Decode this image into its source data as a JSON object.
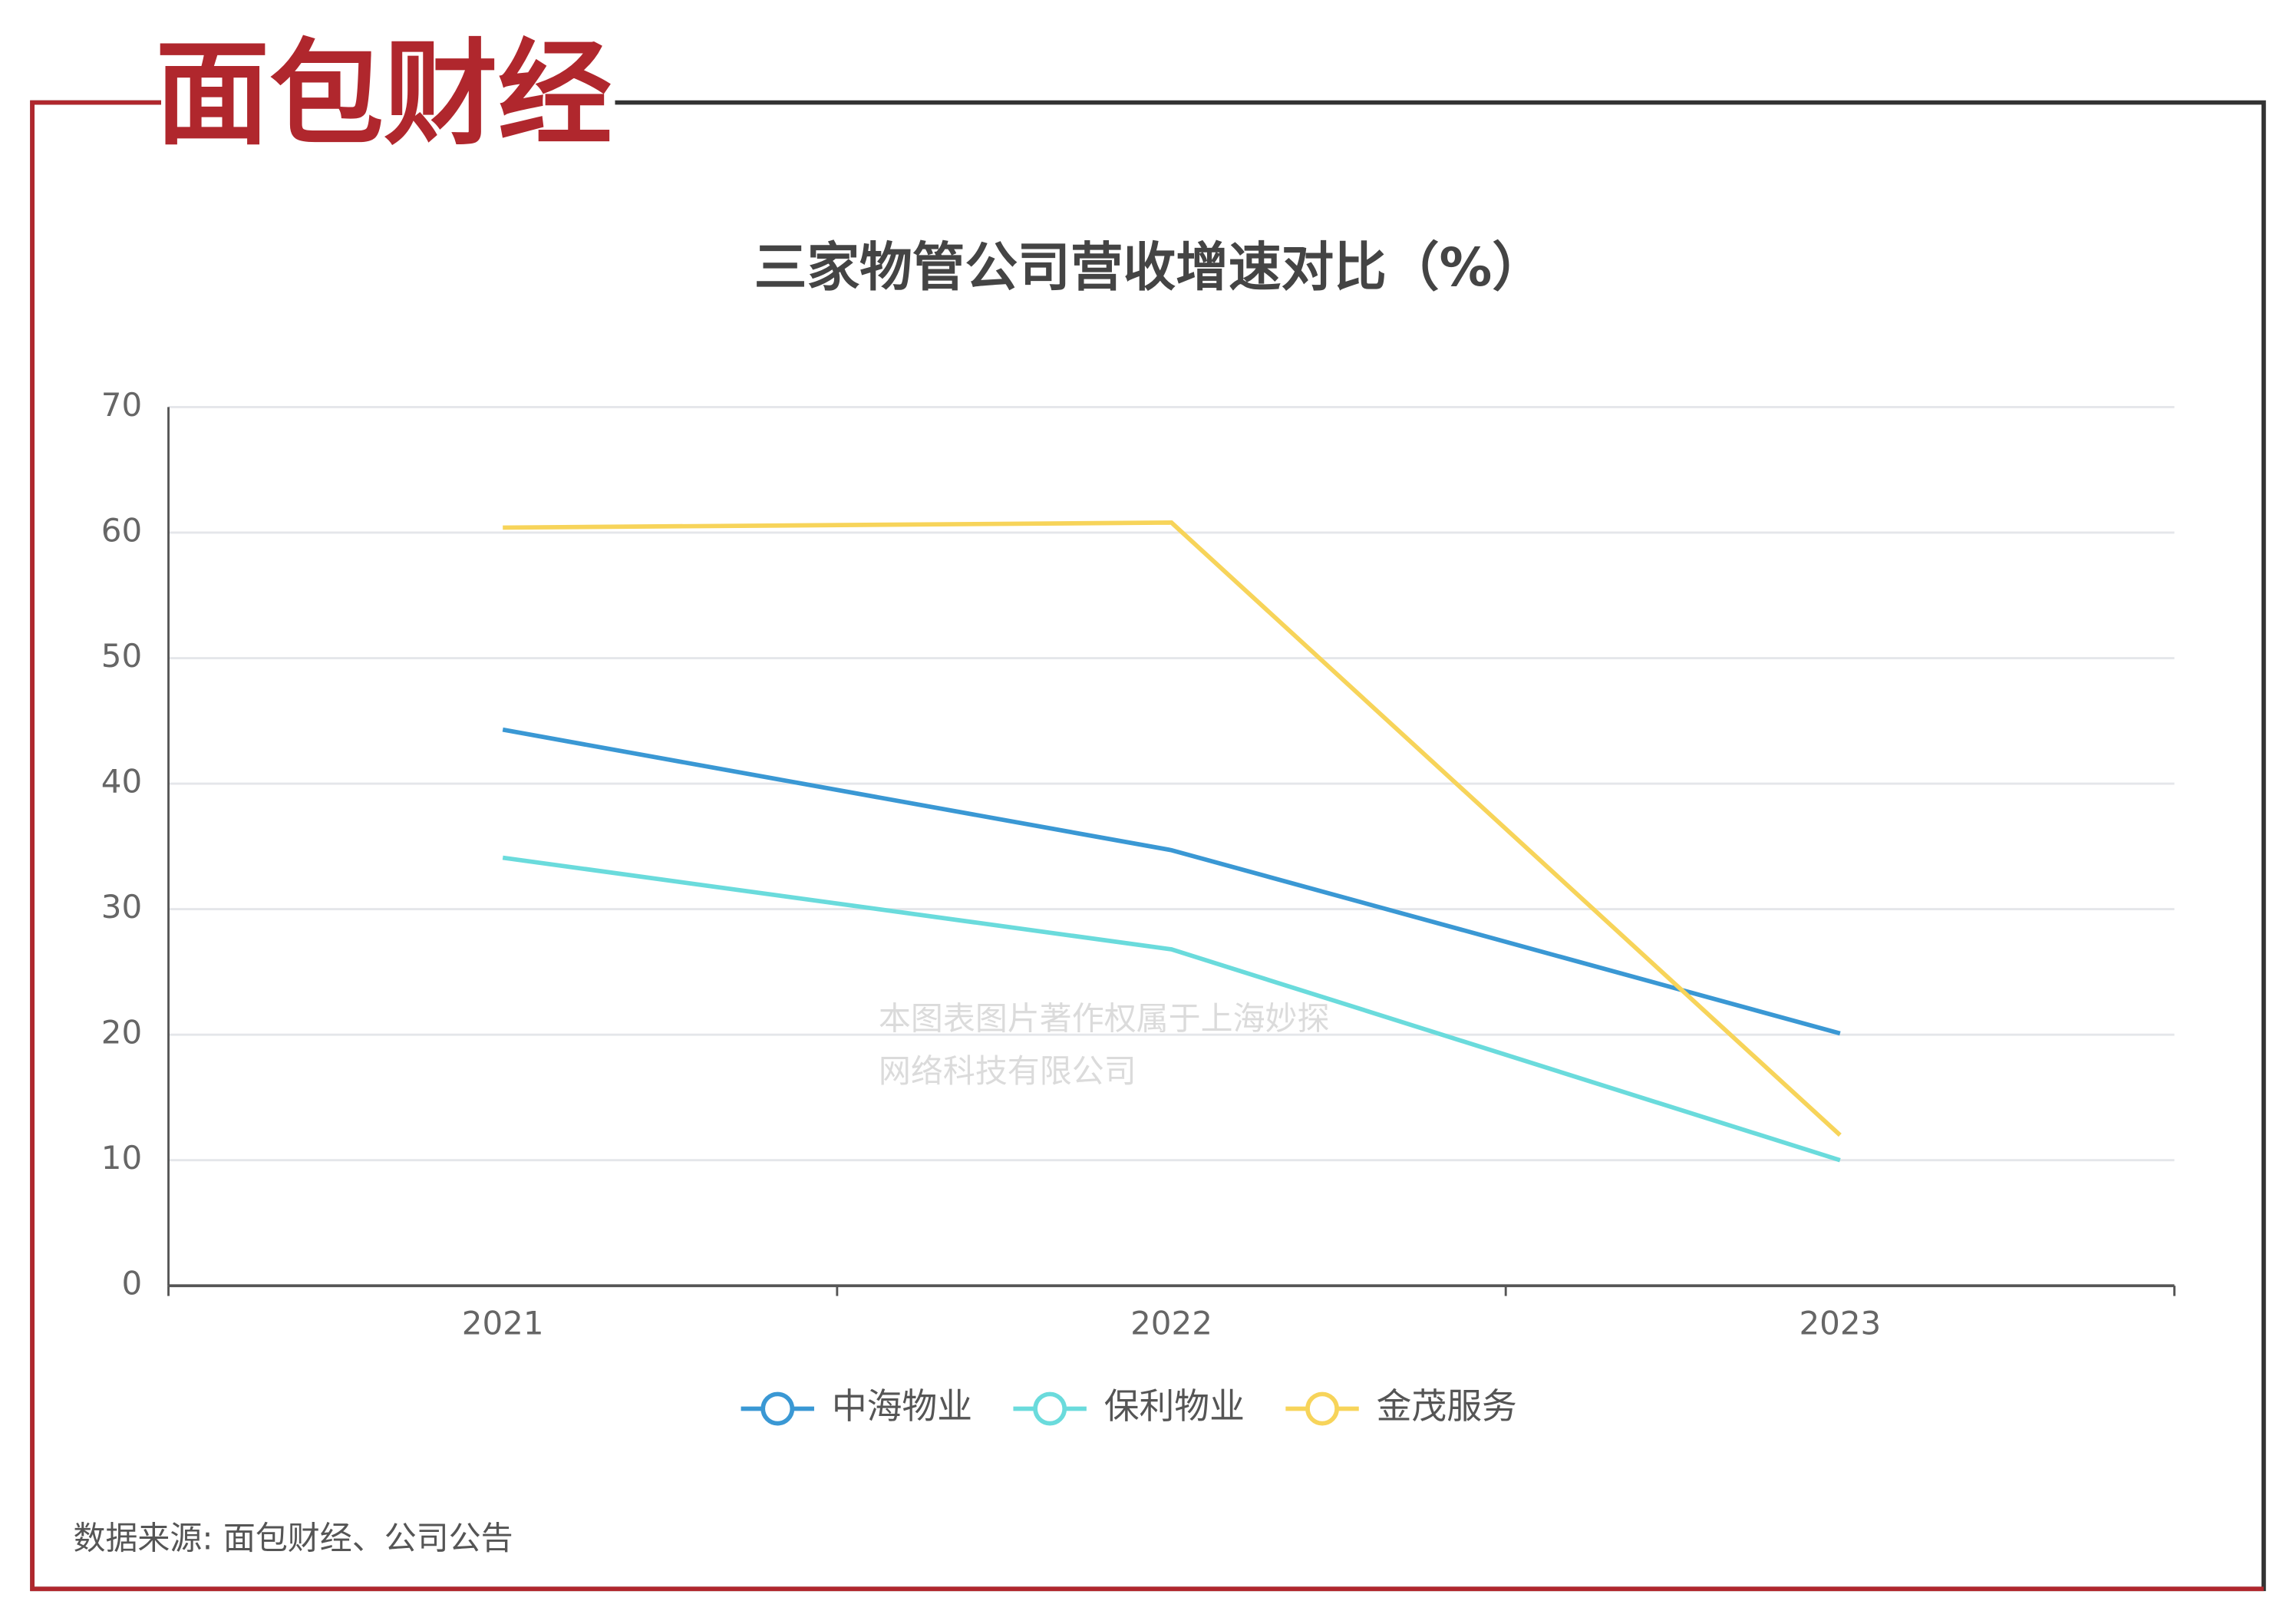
{
  "logo": "面包财经",
  "chart_data": {
    "type": "line",
    "title": "三家物管公司营收增速对比（%）",
    "categories": [
      "2021",
      "2022",
      "2023"
    ],
    "series": [
      {
        "name": "中海物业",
        "color": "#3a98d4",
        "values": [
          44.3,
          34.7,
          20.1
        ]
      },
      {
        "name": "保利物业",
        "color": "#6adbdc",
        "values": [
          34.1,
          26.8,
          10.0
        ]
      },
      {
        "name": "金茂服务",
        "color": "#f7d45a",
        "values": [
          60.4,
          60.8,
          12.0
        ]
      }
    ],
    "ylim": [
      0,
      70
    ],
    "yticks": [
      0,
      10,
      20,
      30,
      40,
      50,
      60,
      70
    ],
    "grid": true,
    "legend": "bottom"
  },
  "watermark": [
    "本图表图片著作权属于上海妙探",
    "网络科技有限公司"
  ],
  "source": "数据来源: 面包财经、公司公告"
}
